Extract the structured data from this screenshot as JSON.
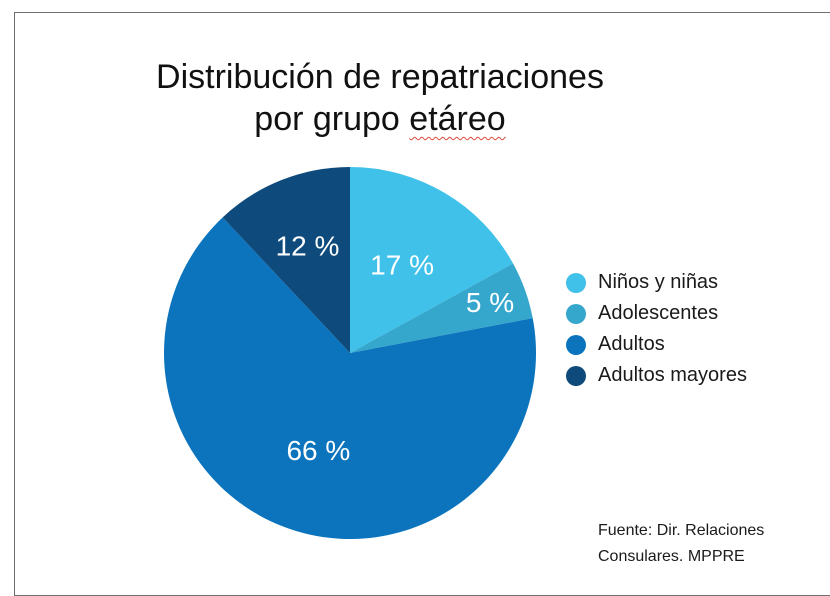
{
  "chart_data": {
    "type": "pie",
    "title": "Distribución de repatriaciones por grupo etáreo",
    "title_lines": [
      "Distribución de repatriaciones",
      "por grupo etáreo"
    ],
    "title_parts": {
      "before": "por grupo ",
      "squiggled": "etáreo"
    },
    "slices": [
      {
        "name": "Niños y niñas",
        "value": 17,
        "label": "17 %",
        "color": "#3fc1e9"
      },
      {
        "name": "Adolescentes",
        "value": 5,
        "label": "5 %",
        "color": "#36a7cc"
      },
      {
        "name": "Adultos",
        "value": 66,
        "label": "66 %",
        "color": "#0b74bd"
      },
      {
        "name": "Adultos mayores",
        "value": 12,
        "label": "12 %",
        "color": "#0e4a7c"
      }
    ],
    "start_angle": "12 o'clock",
    "direction": "clockwise",
    "legend_position": "right",
    "source": "Fuente: Dir. Relaciones Consulares. MPPRE",
    "source_lines": [
      "Fuente: Dir. Relaciones",
      "Consulares. MPPRE"
    ]
  }
}
